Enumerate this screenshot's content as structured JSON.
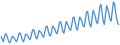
{
  "chart_data": {
    "type": "line",
    "color": "#4a90d9",
    "grid": false,
    "tick_labels": false,
    "ylim": [
      28,
      100
    ],
    "values": [
      40,
      35,
      30,
      38,
      45,
      42,
      36,
      30,
      28,
      34,
      40,
      38,
      36,
      32,
      30,
      37,
      44,
      46,
      40,
      33,
      30,
      36,
      44,
      42,
      40,
      36,
      34,
      42,
      50,
      52,
      46,
      38,
      35,
      42,
      50,
      48,
      45,
      40,
      38,
      47,
      56,
      58,
      50,
      42,
      40,
      48,
      58,
      55,
      52,
      46,
      44,
      54,
      64,
      66,
      58,
      48,
      45,
      55,
      66,
      62,
      58,
      52,
      50,
      60,
      72,
      74,
      64,
      54,
      50,
      62,
      74,
      70,
      66,
      58,
      56,
      68,
      82,
      84,
      72,
      60,
      56,
      70,
      86,
      80,
      74,
      64,
      62,
      76,
      92,
      96,
      80,
      66,
      60,
      78,
      94,
      88,
      80,
      70,
      66,
      84,
      100,
      98,
      82,
      70,
      62,
      60
    ]
  }
}
